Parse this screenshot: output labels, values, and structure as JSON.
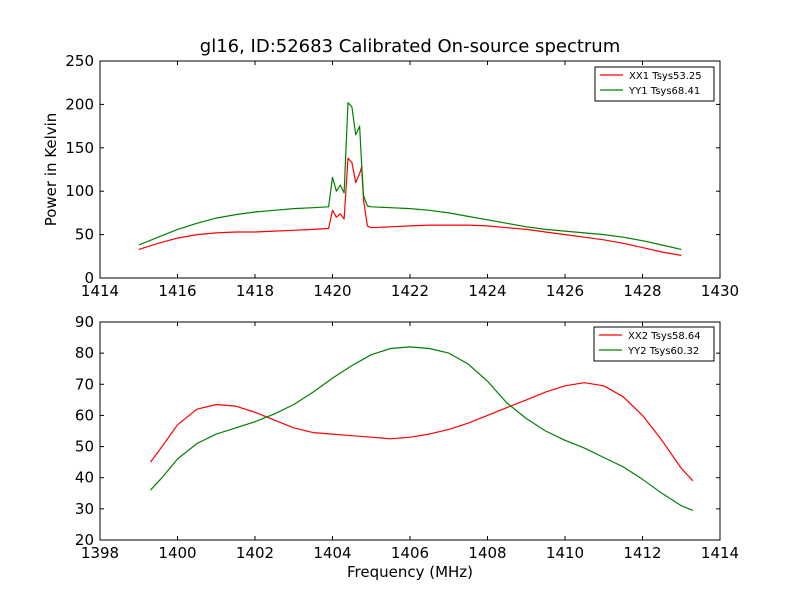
{
  "title": "gl16, ID:52683 Calibrated On-source spectrum",
  "colors": {
    "xx": "#ff0000",
    "yy": "#008000"
  },
  "chart_data": [
    {
      "type": "line",
      "title": "gl16, ID:52683 Calibrated On-source spectrum",
      "xlabel": "",
      "ylabel": "Power in Kelvin",
      "xlim": [
        1414,
        1430
      ],
      "ylim": [
        0,
        250
      ],
      "xticks": [
        "1414",
        "1416",
        "1418",
        "1420",
        "1422",
        "1424",
        "1426",
        "1428",
        "1430"
      ],
      "yticks": [
        "0",
        "50",
        "100",
        "150",
        "200",
        "250"
      ],
      "legend_position": "top-right",
      "grid": false,
      "series": [
        {
          "name": "XX1 Tsys53.25",
          "color": "#ff0000",
          "x": [
            1415.0,
            1415.5,
            1416.0,
            1416.5,
            1417.0,
            1417.5,
            1418.0,
            1418.5,
            1419.0,
            1419.5,
            1419.9,
            1420.0,
            1420.1,
            1420.2,
            1420.3,
            1420.4,
            1420.5,
            1420.6,
            1420.7,
            1420.75,
            1420.8,
            1420.9,
            1421.0,
            1421.5,
            1422.0,
            1422.5,
            1423.0,
            1423.5,
            1424.0,
            1424.5,
            1425.0,
            1425.5,
            1426.0,
            1426.5,
            1427.0,
            1427.5,
            1428.0,
            1428.5,
            1429.0
          ],
          "y": [
            33,
            40,
            46,
            50,
            52,
            53,
            53,
            54,
            55,
            56,
            57,
            78,
            70,
            74,
            68,
            138,
            133,
            110,
            120,
            128,
            90,
            60,
            58,
            59,
            60,
            61,
            61,
            61,
            60,
            58,
            56,
            53,
            50,
            47,
            44,
            40,
            35,
            30,
            26
          ]
        },
        {
          "name": "YY1 Tsys68.41",
          "color": "#008000",
          "x": [
            1415.0,
            1415.5,
            1416.0,
            1416.5,
            1417.0,
            1417.5,
            1418.0,
            1418.5,
            1419.0,
            1419.5,
            1419.9,
            1420.0,
            1420.1,
            1420.2,
            1420.3,
            1420.4,
            1420.5,
            1420.6,
            1420.7,
            1420.75,
            1420.8,
            1420.9,
            1421.0,
            1421.5,
            1422.0,
            1422.5,
            1423.0,
            1423.5,
            1424.0,
            1424.5,
            1425.0,
            1425.5,
            1426.0,
            1426.5,
            1427.0,
            1427.5,
            1428.0,
            1428.5,
            1429.0
          ],
          "y": [
            38,
            47,
            56,
            63,
            69,
            73,
            76,
            78,
            80,
            81,
            82,
            116,
            100,
            107,
            98,
            202,
            197,
            165,
            175,
            132,
            95,
            83,
            82,
            81,
            80,
            78,
            75,
            71,
            67,
            63,
            59,
            56,
            54,
            52,
            50,
            47,
            43,
            38,
            33
          ]
        }
      ]
    },
    {
      "type": "line",
      "title": "",
      "xlabel": "Frequency (MHz)",
      "ylabel": "",
      "xlim": [
        1398,
        1414
      ],
      "ylim": [
        20,
        90
      ],
      "xticks": [
        "1398",
        "1400",
        "1402",
        "1404",
        "1406",
        "1408",
        "1410",
        "1412",
        "1414"
      ],
      "yticks": [
        "20",
        "30",
        "40",
        "50",
        "60",
        "70",
        "80",
        "90"
      ],
      "legend_position": "top-right",
      "grid": false,
      "series": [
        {
          "name": "XX2 Tsys58.64",
          "color": "#ff0000",
          "x": [
            1399.3,
            1399.6,
            1400.0,
            1400.5,
            1401.0,
            1401.5,
            1402.0,
            1402.5,
            1403.0,
            1403.5,
            1404.0,
            1404.5,
            1405.0,
            1405.5,
            1406.0,
            1406.5,
            1407.0,
            1407.5,
            1408.0,
            1408.5,
            1409.0,
            1409.5,
            1410.0,
            1410.5,
            1411.0,
            1411.5,
            1412.0,
            1412.5,
            1413.0,
            1413.3
          ],
          "y": [
            45,
            50,
            57,
            62,
            63.5,
            63,
            61,
            58.5,
            56,
            54.5,
            54,
            53.5,
            53,
            52.5,
            53,
            54,
            55.5,
            57.5,
            60,
            62.5,
            65,
            67.5,
            69.5,
            70.5,
            69.5,
            66,
            60,
            52,
            43,
            39
          ]
        },
        {
          "name": "YY2 Tsys60.32",
          "color": "#008000",
          "x": [
            1399.3,
            1399.6,
            1400.0,
            1400.5,
            1401.0,
            1401.5,
            1402.0,
            1402.5,
            1403.0,
            1403.5,
            1404.0,
            1404.5,
            1405.0,
            1405.5,
            1406.0,
            1406.5,
            1407.0,
            1407.5,
            1408.0,
            1408.5,
            1409.0,
            1409.5,
            1410.0,
            1410.5,
            1411.0,
            1411.5,
            1412.0,
            1412.5,
            1413.0,
            1413.3
          ],
          "y": [
            36,
            40,
            46,
            51,
            54,
            56,
            58,
            60.5,
            63.5,
            67.5,
            72,
            76,
            79.5,
            81.5,
            82,
            81.5,
            80,
            76.5,
            71,
            64,
            59,
            55,
            52,
            49.5,
            46.5,
            43.5,
            39.5,
            35,
            31,
            29.5
          ]
        }
      ]
    }
  ]
}
